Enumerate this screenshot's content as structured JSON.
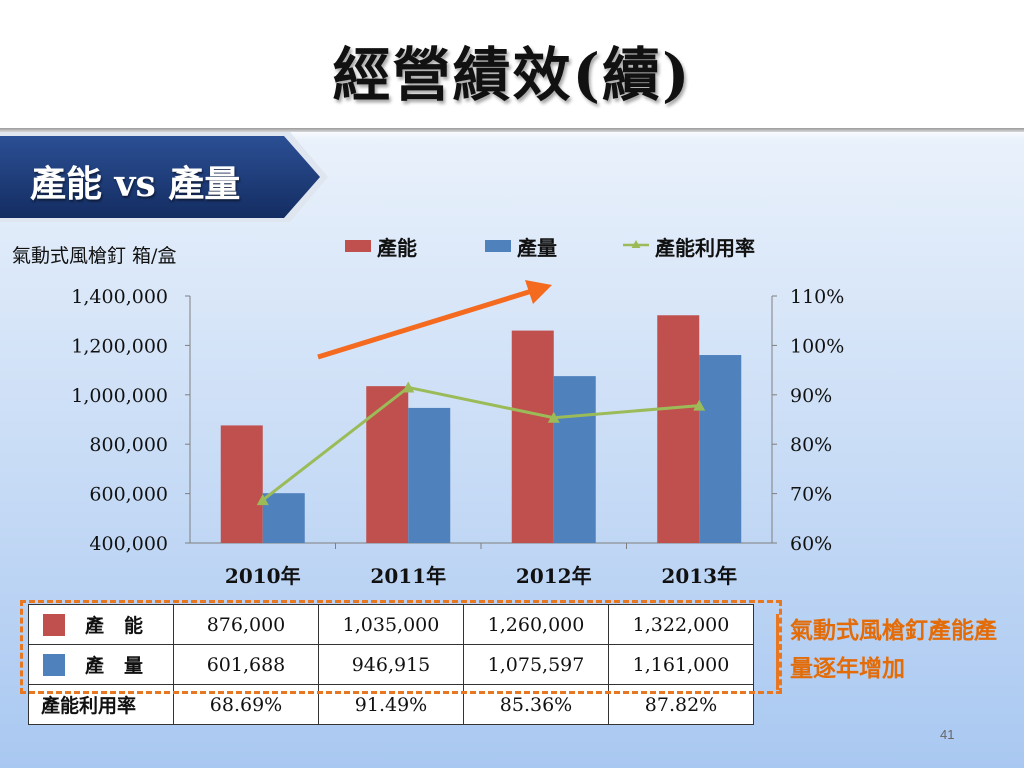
{
  "slide": {
    "title": "經營績效(續)",
    "banner": "產能 vs 產量",
    "unit_label": "氣動式風槍釘  箱/盒",
    "note": "氣動式風槍釘產能產量逐年增加",
    "page_number": "41"
  },
  "chart_data": {
    "type": "bar",
    "categories": [
      "2010年",
      "2011年",
      "2012年",
      "2013年"
    ],
    "series": [
      {
        "name": "產能",
        "type": "bar",
        "axis": "left",
        "color": "#c0504d",
        "values": [
          876000,
          1035000,
          1260000,
          1322000
        ]
      },
      {
        "name": "產量",
        "type": "bar",
        "axis": "left",
        "color": "#4f81bd",
        "values": [
          601688,
          946915,
          1075597,
          1161000
        ]
      },
      {
        "name": "產能利用率",
        "type": "line",
        "axis": "right",
        "color": "#9bbb59",
        "values": [
          68.69,
          91.49,
          85.36,
          87.82
        ]
      }
    ],
    "y_left": {
      "min": 400000,
      "max": 1400000,
      "ticks": [
        "400,000",
        "600,000",
        "800,000",
        "1,000,000",
        "1,200,000",
        "1,400,000"
      ]
    },
    "y_right": {
      "min": 60,
      "max": 110,
      "ticks": [
        "60%",
        "70%",
        "80%",
        "90%",
        "100%",
        "110%"
      ]
    },
    "legend_position": "top",
    "grid": false,
    "annotation": "orange upward trend arrow"
  },
  "table": {
    "rows": [
      {
        "label": "產能",
        "color": "#c0504d",
        "values": [
          "876,000",
          "1,035,000",
          "1,260,000",
          "1,322,000"
        ]
      },
      {
        "label": "產量",
        "color": "#4f81bd",
        "values": [
          "601,688",
          "946,915",
          "1,075,597",
          "1,161,000"
        ]
      },
      {
        "label": "產能利用率",
        "color": "",
        "values": [
          "68.69%",
          "91.49%",
          "85.36%",
          "87.82%"
        ]
      }
    ]
  }
}
